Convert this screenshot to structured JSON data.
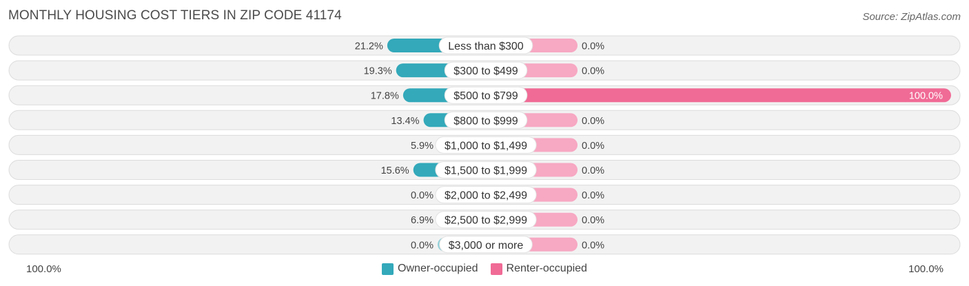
{
  "title": "MONTHLY HOUSING COST TIERS IN ZIP CODE 41174",
  "source": "Source: ZipAtlas.com",
  "colors": {
    "owner": "#33a9ba",
    "owner_light": "#8fd0d9",
    "renter": "#f06b96",
    "renter_light": "#f7a8c3",
    "row_bg": "#f2f2f2",
    "row_border": "#dcdcdc"
  },
  "legend": {
    "owner_label": "Owner-occupied",
    "renter_label": "Renter-occupied"
  },
  "axis": {
    "left_label": "100.0%",
    "right_label": "100.0%"
  },
  "chart_data": {
    "type": "bar",
    "orientation": "horizontal-diverging",
    "categories": [
      "Less than $300",
      "$300 to $499",
      "$500 to $799",
      "$800 to $999",
      "$1,000 to $1,499",
      "$1,500 to $1,999",
      "$2,000 to $2,499",
      "$2,500 to $2,999",
      "$3,000 or more"
    ],
    "series": [
      {
        "name": "Owner-occupied",
        "values": [
          21.2,
          19.3,
          17.8,
          13.4,
          5.9,
          15.6,
          0.0,
          6.9,
          0.0
        ],
        "labels": [
          "21.2%",
          "19.3%",
          "17.8%",
          "13.4%",
          "5.9%",
          "15.6%",
          "0.0%",
          "6.9%",
          "0.0%"
        ]
      },
      {
        "name": "Renter-occupied",
        "values": [
          0.0,
          0.0,
          100.0,
          0.0,
          0.0,
          0.0,
          0.0,
          0.0,
          0.0
        ],
        "labels": [
          "0.0%",
          "0.0%",
          "100.0%",
          "0.0%",
          "0.0%",
          "0.0%",
          "0.0%",
          "0.0%",
          "0.0%"
        ]
      }
    ],
    "xlim": [
      -100,
      100
    ],
    "legend_position": "bottom-center"
  }
}
